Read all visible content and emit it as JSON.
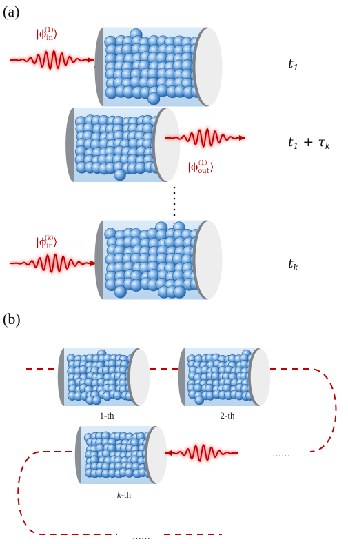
{
  "panels": [
    {
      "label": "(a)",
      "kets": [
        {
          "base": "|ϕ",
          "sub": "in",
          "sup": "(1)",
          "close": "⟩"
        },
        {
          "base": "|ϕ",
          "sub": "out",
          "sup": "(1)",
          "close": "⟩"
        },
        {
          "base": "|ϕ",
          "sub": "in",
          "sup": "(k)",
          "close": "⟩"
        }
      ],
      "times": [
        {
          "base": "t",
          "sub": "1"
        },
        {
          "base": "t",
          "sub": "1",
          "mid": " + τ",
          "sub2": "k"
        },
        {
          "base": "t",
          "sub": "k"
        }
      ]
    },
    {
      "label": "(b)",
      "memories": [
        "1-th",
        "2-th",
        {
          "italic": "k",
          "rest": "-th"
        }
      ],
      "ellipses": [
        "……",
        "……"
      ]
    }
  ]
}
